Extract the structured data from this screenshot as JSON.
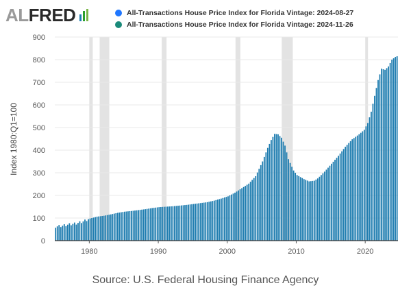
{
  "logo": {
    "prefix": "AL",
    "name": "FRED"
  },
  "colors": {
    "series_1": "#1f77ff",
    "series_2": "#1a8a7a",
    "bars": "#1f7db0",
    "recession": "#e3e3e3",
    "grid": "#e8e8e8"
  },
  "source": "Source: U.S. Federal Housing Finance Agency",
  "chart_data": {
    "type": "bar",
    "title": "",
    "ylabel": "Index 1980:Q1=100",
    "xlabel": "",
    "ylim": [
      0,
      900
    ],
    "xlim": [
      1975.0,
      2024.75
    ],
    "yticks": [
      "0",
      "100",
      "200",
      "300",
      "400",
      "500",
      "600",
      "700",
      "800",
      "900"
    ],
    "xticks": [
      "1980",
      "1990",
      "2000",
      "2010",
      "2020"
    ],
    "grid": true,
    "legend_position": "top",
    "series": [
      {
        "name": "All-Transactions House Price Index for Florida Vintage: 2024-08-27"
      },
      {
        "name": "All-Transactions House Price Index for Florida Vintage: 2024-11-26"
      }
    ],
    "recessions": [
      [
        1980.0,
        1980.5
      ],
      [
        1981.5,
        1982.9
      ],
      [
        1990.5,
        1991.2
      ],
      [
        2001.2,
        2001.9
      ],
      [
        2007.9,
        2009.5
      ],
      [
        2020.0,
        2020.4
      ]
    ],
    "anchors": {
      "x": [
        1975.0,
        1976.0,
        1977.0,
        1978.0,
        1979.0,
        1980.0,
        1981.0,
        1982.0,
        1983.0,
        1984.0,
        1985.0,
        1986.0,
        1987.0,
        1988.0,
        1989.0,
        1990.0,
        1991.0,
        1992.0,
        1993.0,
        1994.0,
        1995.0,
        1996.0,
        1997.0,
        1998.0,
        1999.0,
        2000.0,
        2001.0,
        2002.0,
        2003.0,
        2004.0,
        2005.0,
        2005.75,
        2006.25,
        2006.75,
        2007.25,
        2007.75,
        2008.25,
        2008.75,
        2009.5,
        2010.0,
        2011.0,
        2011.75,
        2012.5,
        2013.0,
        2014.0,
        2015.0,
        2016.0,
        2017.0,
        2018.0,
        2019.0,
        2019.75,
        2020.25,
        2020.75,
        2021.25,
        2021.75,
        2022.25,
        2022.75,
        2023.25,
        2023.75,
        2024.25,
        2024.75
      ],
      "y": [
        62,
        66,
        72,
        76,
        85,
        98,
        106,
        110,
        116,
        123,
        128,
        131,
        135,
        139,
        144,
        148,
        150,
        152,
        155,
        158,
        162,
        166,
        170,
        177,
        186,
        196,
        212,
        232,
        252,
        285,
        350,
        410,
        445,
        472,
        470,
        455,
        420,
        360,
        310,
        290,
        272,
        262,
        265,
        275,
        305,
        340,
        375,
        415,
        448,
        470,
        490,
        520,
        570,
        640,
        710,
        760,
        755,
        770,
        800,
        812,
        818
      ]
    }
  }
}
